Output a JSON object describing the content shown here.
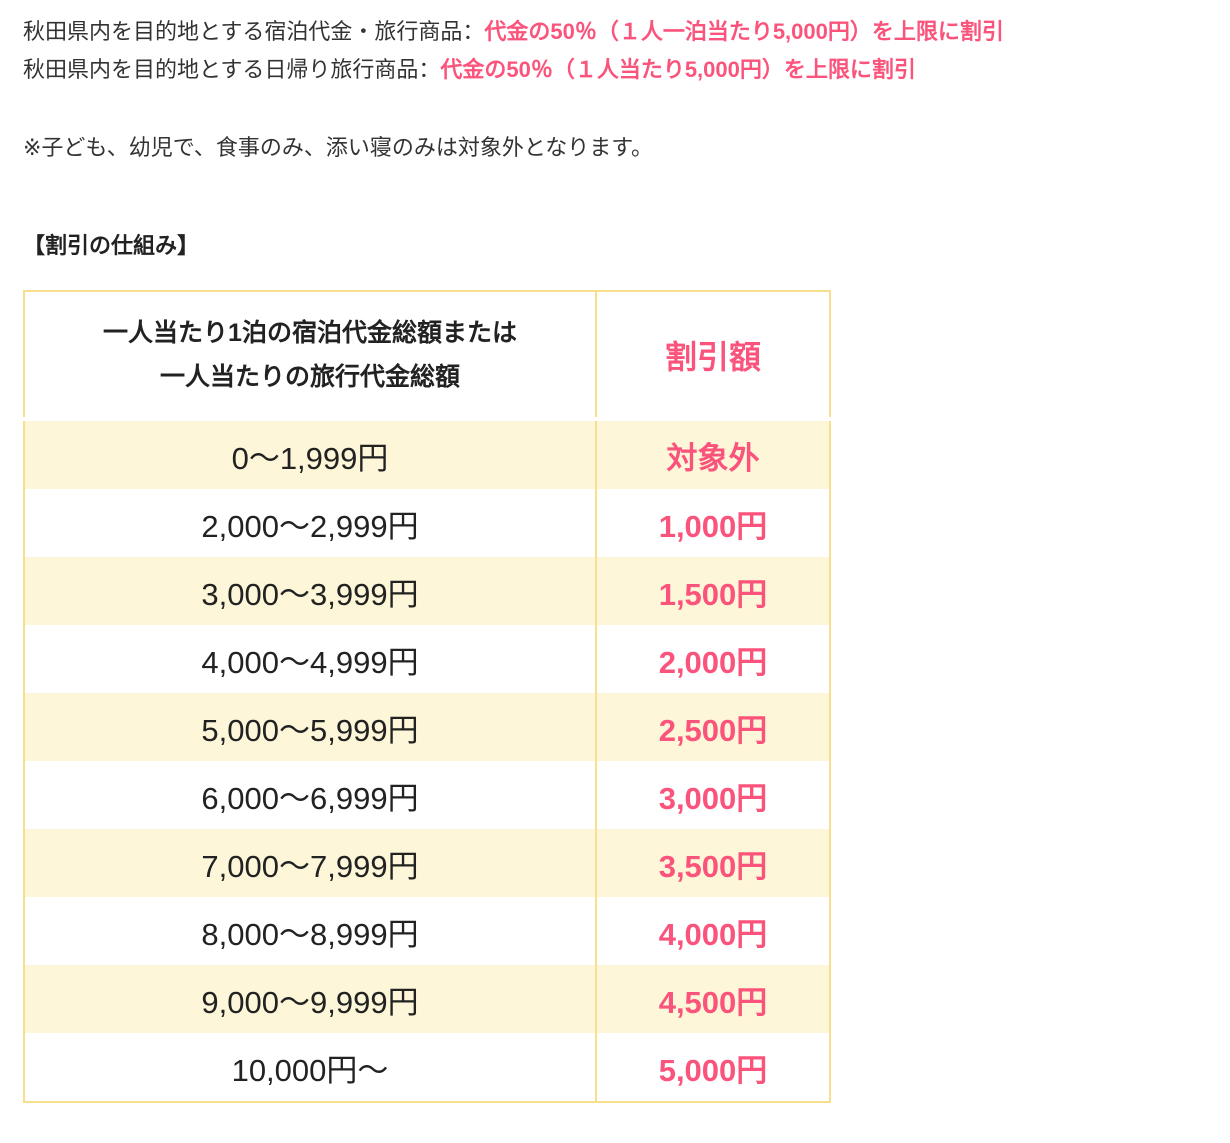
{
  "page": {
    "intro_lines": [
      {
        "label": "秋田県内を目的地とする宿泊代金・旅行商品：",
        "highlight": "代金の50％（１人一泊当たり5,000円）を上限に割引"
      },
      {
        "label": "秋田県内を目的地とする日帰り旅行商品：",
        "highlight": "代金の50％（１人当たり5,000円）を上限に割引"
      }
    ],
    "note": "※子ども、幼児で、食事のみ、添い寝のみは対象外となります。",
    "section_heading": "【割引の仕組み】"
  },
  "table": {
    "header": {
      "price_line1": "一人当たり1泊の宿泊代金総額または",
      "price_line2": "一人当たりの旅行代金総額",
      "discount": "割引額"
    },
    "rows": [
      {
        "price": "0〜1,999円",
        "discount": "対象外"
      },
      {
        "price": "2,000〜2,999円",
        "discount": "1,000円"
      },
      {
        "price": "3,000〜3,999円",
        "discount": "1,500円"
      },
      {
        "price": "4,000〜4,999円",
        "discount": "2,000円"
      },
      {
        "price": "5,000〜5,999円",
        "discount": "2,500円"
      },
      {
        "price": "6,000〜6,999円",
        "discount": "3,000円"
      },
      {
        "price": "7,000〜7,999円",
        "discount": "3,500円"
      },
      {
        "price": "8,000〜8,999円",
        "discount": "4,000円"
      },
      {
        "price": "9,000〜9,999円",
        "discount": "4,500円"
      },
      {
        "price": "10,000円〜",
        "discount": "5,000円"
      }
    ]
  },
  "colors": {
    "accent_pink": "#fa547c",
    "row_yellow": "#fdf6d8",
    "border_gold": "#f8df8e",
    "text_dark": "#333333"
  }
}
